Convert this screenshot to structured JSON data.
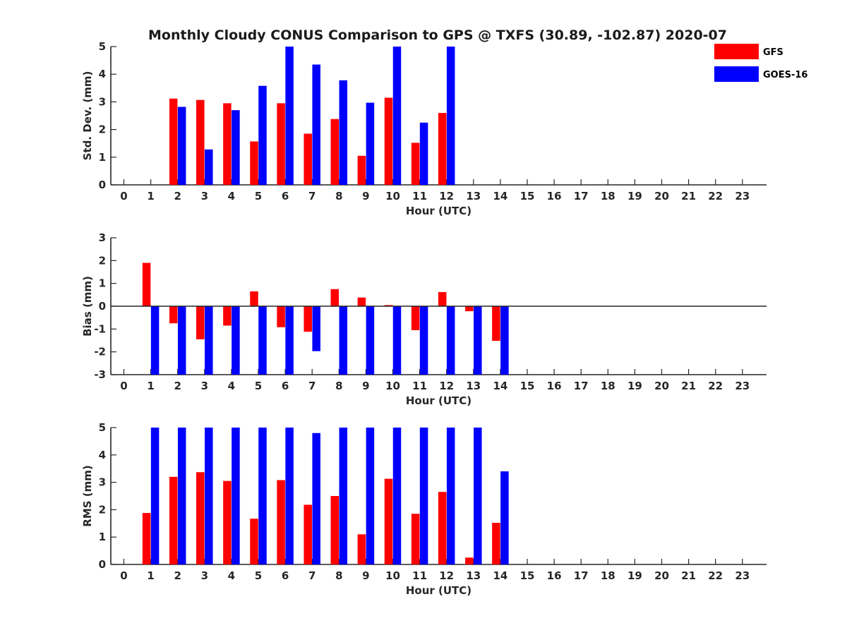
{
  "chart_data": {
    "title": "Monthly Cloudy CONUS Comparison to GPS @ TXFS (30.89, -102.87) 2020-07",
    "legend": {
      "placement": "top-right",
      "entries": [
        {
          "name": "GFS",
          "color": "#ff0000"
        },
        {
          "name": "GOES-16",
          "color": "#0000ff"
        }
      ]
    },
    "panels": [
      {
        "id": "std",
        "type": "bar",
        "xlabel": "Hour (UTC)",
        "ylabel": "Std. Dev. (mm)",
        "ylim": [
          0,
          5
        ],
        "yticks": [
          "0",
          "1",
          "2",
          "3",
          "4",
          "5"
        ],
        "x": [
          "0",
          "1",
          "2",
          "3",
          "4",
          "5",
          "6",
          "7",
          "8",
          "9",
          "10",
          "11",
          "12",
          "13",
          "14",
          "15",
          "16",
          "17",
          "18",
          "19",
          "20",
          "21",
          "22",
          "23"
        ],
        "series": [
          {
            "name": "GFS",
            "color": "#ff0000",
            "values": [
              null,
              null,
              3.12,
              3.07,
              2.95,
              1.57,
              2.95,
              1.85,
              2.38,
              1.05,
              3.15,
              1.52,
              2.6,
              null,
              null,
              null,
              null,
              null,
              null,
              null,
              null,
              null,
              null,
              null
            ]
          },
          {
            "name": "GOES-16",
            "color": "#0000ff",
            "values": [
              null,
              null,
              2.82,
              1.28,
              2.7,
              3.58,
              5.0,
              4.35,
              3.78,
              2.97,
              5.0,
              2.25,
              5.0,
              null,
              null,
              null,
              null,
              null,
              null,
              null,
              null,
              null,
              null,
              null
            ]
          }
        ]
      },
      {
        "id": "bias",
        "type": "bar",
        "xlabel": "Hour (UTC)",
        "ylabel": "Bias (mm)",
        "ylim": [
          -3,
          3
        ],
        "yticks": [
          "-3",
          "-2",
          "-1",
          "0",
          "1",
          "2",
          "3"
        ],
        "zero_line": true,
        "x": [
          "0",
          "1",
          "2",
          "3",
          "4",
          "5",
          "6",
          "7",
          "8",
          "9",
          "10",
          "11",
          "12",
          "13",
          "14",
          "15",
          "16",
          "17",
          "18",
          "19",
          "20",
          "21",
          "22",
          "23"
        ],
        "series": [
          {
            "name": "GFS",
            "color": "#ff0000",
            "values": [
              null,
              1.9,
              -0.75,
              -1.45,
              -0.85,
              0.65,
              -0.92,
              -1.12,
              0.75,
              0.38,
              0.05,
              -1.05,
              0.62,
              -0.22,
              -1.52,
              null,
              null,
              null,
              null,
              null,
              null,
              null,
              null,
              null
            ]
          },
          {
            "name": "GOES-16",
            "color": "#0000ff",
            "values": [
              null,
              -3.0,
              -3.0,
              -3.0,
              -3.0,
              -3.0,
              -3.0,
              -1.97,
              -3.0,
              -3.0,
              -3.0,
              -3.0,
              -3.0,
              -3.0,
              -3.0,
              null,
              null,
              null,
              null,
              null,
              null,
              null,
              null,
              null
            ]
          }
        ]
      },
      {
        "id": "rms",
        "type": "bar",
        "xlabel": "Hour (UTC)",
        "ylabel": "RMS (mm)",
        "ylim": [
          0,
          5
        ],
        "yticks": [
          "0",
          "1",
          "2",
          "3",
          "4",
          "5"
        ],
        "x": [
          "0",
          "1",
          "2",
          "3",
          "4",
          "5",
          "6",
          "7",
          "8",
          "9",
          "10",
          "11",
          "12",
          "13",
          "14",
          "15",
          "16",
          "17",
          "18",
          "19",
          "20",
          "21",
          "22",
          "23"
        ],
        "series": [
          {
            "name": "GFS",
            "color": "#ff0000",
            "values": [
              null,
              1.88,
              3.2,
              3.37,
              3.05,
              1.67,
              3.08,
              2.18,
              2.5,
              1.1,
              3.13,
              1.85,
              2.65,
              0.25,
              1.52,
              null,
              null,
              null,
              null,
              null,
              null,
              null,
              null,
              null
            ]
          },
          {
            "name": "GOES-16",
            "color": "#0000ff",
            "values": [
              null,
              5.0,
              5.0,
              5.0,
              5.0,
              5.0,
              5.0,
              4.8,
              5.0,
              5.0,
              5.0,
              5.0,
              5.0,
              5.0,
              3.4,
              null,
              null,
              null,
              null,
              null,
              null,
              null,
              null,
              null
            ]
          }
        ]
      }
    ]
  }
}
